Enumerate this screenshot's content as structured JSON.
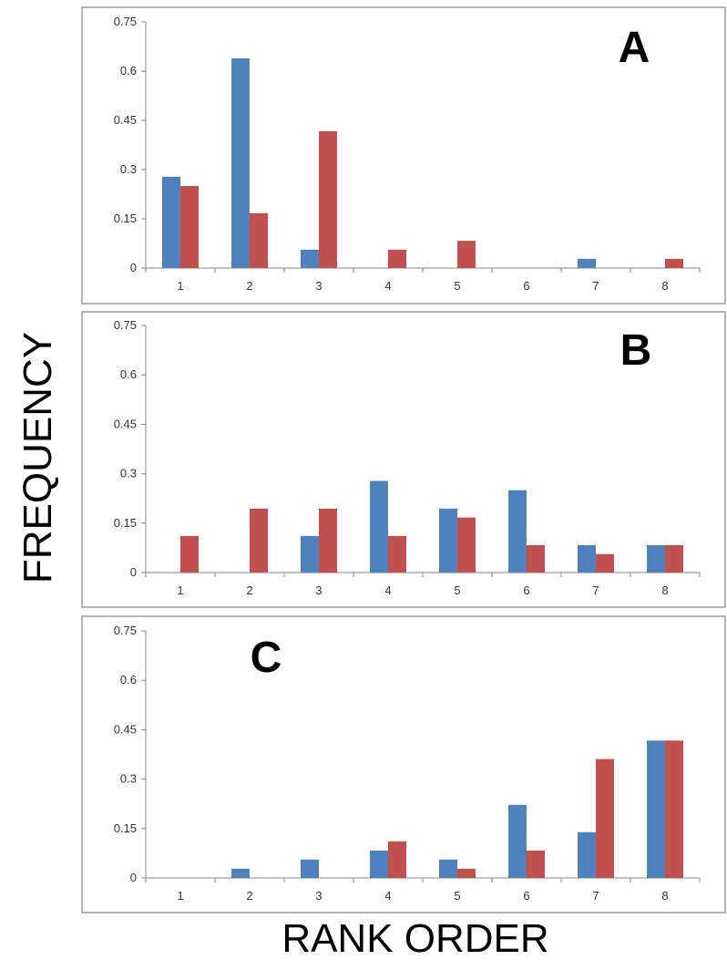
{
  "figure": {
    "ylabel": "FREQUENCY",
    "xlabel": "RANK ORDER"
  },
  "colors": {
    "series_blue": "#4F81BD",
    "series_red": "#C0504D"
  },
  "chart_data": [
    {
      "type": "bar",
      "panel_label": "A",
      "categories": [
        "1",
        "2",
        "3",
        "4",
        "5",
        "6",
        "7",
        "8"
      ],
      "yticks": [
        "0",
        "0.15",
        "0.3",
        "0.45",
        "0.6",
        "0.75"
      ],
      "ylim": [
        0,
        0.75
      ],
      "grid": false,
      "series": [
        {
          "color": "#4F81BD",
          "values": [
            0.278,
            0.639,
            0.056,
            0,
            0,
            0,
            0.028,
            0
          ]
        },
        {
          "color": "#C0504D",
          "values": [
            0.25,
            0.167,
            0.417,
            0.056,
            0.083,
            0,
            0,
            0.028
          ]
        }
      ]
    },
    {
      "type": "bar",
      "panel_label": "B",
      "categories": [
        "1",
        "2",
        "3",
        "4",
        "5",
        "6",
        "7",
        "8"
      ],
      "yticks": [
        "0",
        "0.15",
        "0.3",
        "0.45",
        "0.6",
        "0.75"
      ],
      "ylim": [
        0,
        0.75
      ],
      "grid": false,
      "series": [
        {
          "color": "#4F81BD",
          "values": [
            0,
            0,
            0.111,
            0.278,
            0.194,
            0.25,
            0.083,
            0.083
          ]
        },
        {
          "color": "#C0504D",
          "values": [
            0.111,
            0.194,
            0.194,
            0.111,
            0.167,
            0.083,
            0.056,
            0.083
          ]
        }
      ]
    },
    {
      "type": "bar",
      "panel_label": "C",
      "categories": [
        "1",
        "2",
        "3",
        "4",
        "5",
        "6",
        "7",
        "8"
      ],
      "yticks": [
        "0",
        "0.15",
        "0.3",
        "0.45",
        "0.6",
        "0.75"
      ],
      "ylim": [
        0,
        0.75
      ],
      "grid": false,
      "series": [
        {
          "color": "#4F81BD",
          "values": [
            0,
            0.028,
            0.056,
            0.083,
            0.056,
            0.222,
            0.139,
            0.417
          ]
        },
        {
          "color": "#C0504D",
          "values": [
            0,
            0,
            0,
            0.111,
            0.028,
            0.083,
            0.361,
            0.417
          ]
        }
      ]
    }
  ]
}
